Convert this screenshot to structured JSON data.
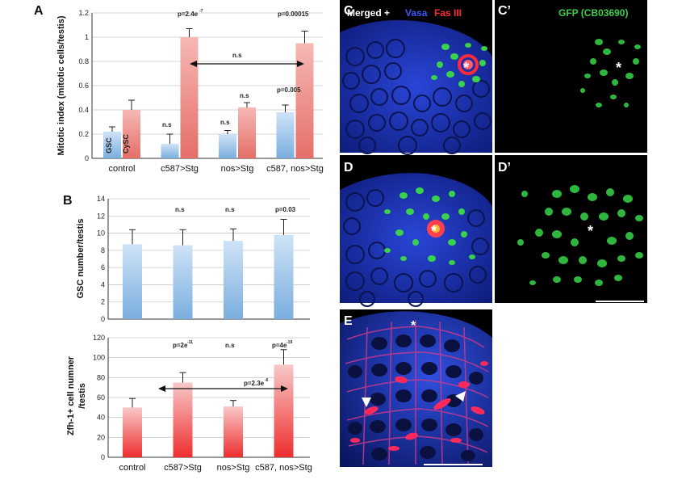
{
  "colors": {
    "gsc": "#8fbce8",
    "cysc": "#ee8f8a",
    "zfh": "#f05050",
    "blue_tissue": "#1a2fb0",
    "green": "#3ccf4a",
    "red": "#ff2a3c"
  },
  "panels": {
    "A": "A",
    "B": "B",
    "C": "C",
    "Cp": "C’",
    "D": "D",
    "Dp": "D’",
    "E": "E"
  },
  "micro": {
    "title_merged": "Merged + ",
    "title_vasa": "Vasa",
    "title_fas": "Fas III",
    "title_gfp": "GFP (CB03690)",
    "asterisk": "*"
  },
  "chart_data": [
    {
      "type": "bar",
      "panel": "A",
      "categories": [
        "control",
        "c587>Stg",
        "nos>Stg",
        "c587, nos>Stg"
      ],
      "series": [
        {
          "name": "GSC",
          "values": [
            0.22,
            0.12,
            0.2,
            0.38
          ],
          "errors": [
            0.04,
            0.08,
            0.03,
            0.06
          ]
        },
        {
          "name": "CySC",
          "values": [
            0.4,
            1.0,
            0.42,
            0.95
          ],
          "errors": [
            0.08,
            0.07,
            0.04,
            0.1
          ]
        }
      ],
      "ylabel": "Mitotic index (mitotic cells/testis)",
      "ylim": [
        0,
        1.2
      ],
      "yticks": [
        "0",
        "0.2",
        "0.4",
        "0.6",
        "0.8",
        "1",
        "1.2"
      ],
      "annotations": [
        "p=2.4e",
        "-7",
        "p=0.00015",
        "n.s",
        "n.s",
        "n.s",
        "p=0.005",
        "n.s"
      ]
    },
    {
      "type": "bar",
      "panel": "B-top",
      "categories": [
        "control",
        "c587>Stg",
        "nos>Stg",
        "c587, nos>Stg"
      ],
      "values": [
        8.7,
        8.6,
        9.1,
        9.8
      ],
      "errors": [
        1.7,
        1.8,
        1.4,
        1.8
      ],
      "ylabel": "GSC number/testis",
      "ylim": [
        0,
        14
      ],
      "yticks": [
        "0",
        "2",
        "4",
        "6",
        "8",
        "10",
        "12",
        "14"
      ],
      "annotations": [
        "n.s",
        "n.s",
        "p=0.03"
      ]
    },
    {
      "type": "bar",
      "panel": "B-bottom",
      "categories": [
        "control",
        "c587>Stg",
        "nos>Stg",
        "c587, nos>Stg"
      ],
      "values": [
        50,
        75,
        51,
        93
      ],
      "errors": [
        9,
        10,
        6,
        15
      ],
      "ylabel_line1": "Zfh-1+ cell numner",
      "ylabel_line2": "/testis",
      "ylim": [
        0,
        120
      ],
      "yticks": [
        "0",
        "20",
        "40",
        "60",
        "80",
        "100",
        "120"
      ],
      "annotations": [
        "p=2e",
        "-11",
        "n.s",
        "p=4e",
        "-19",
        "p=2.3e",
        "-6"
      ]
    }
  ]
}
